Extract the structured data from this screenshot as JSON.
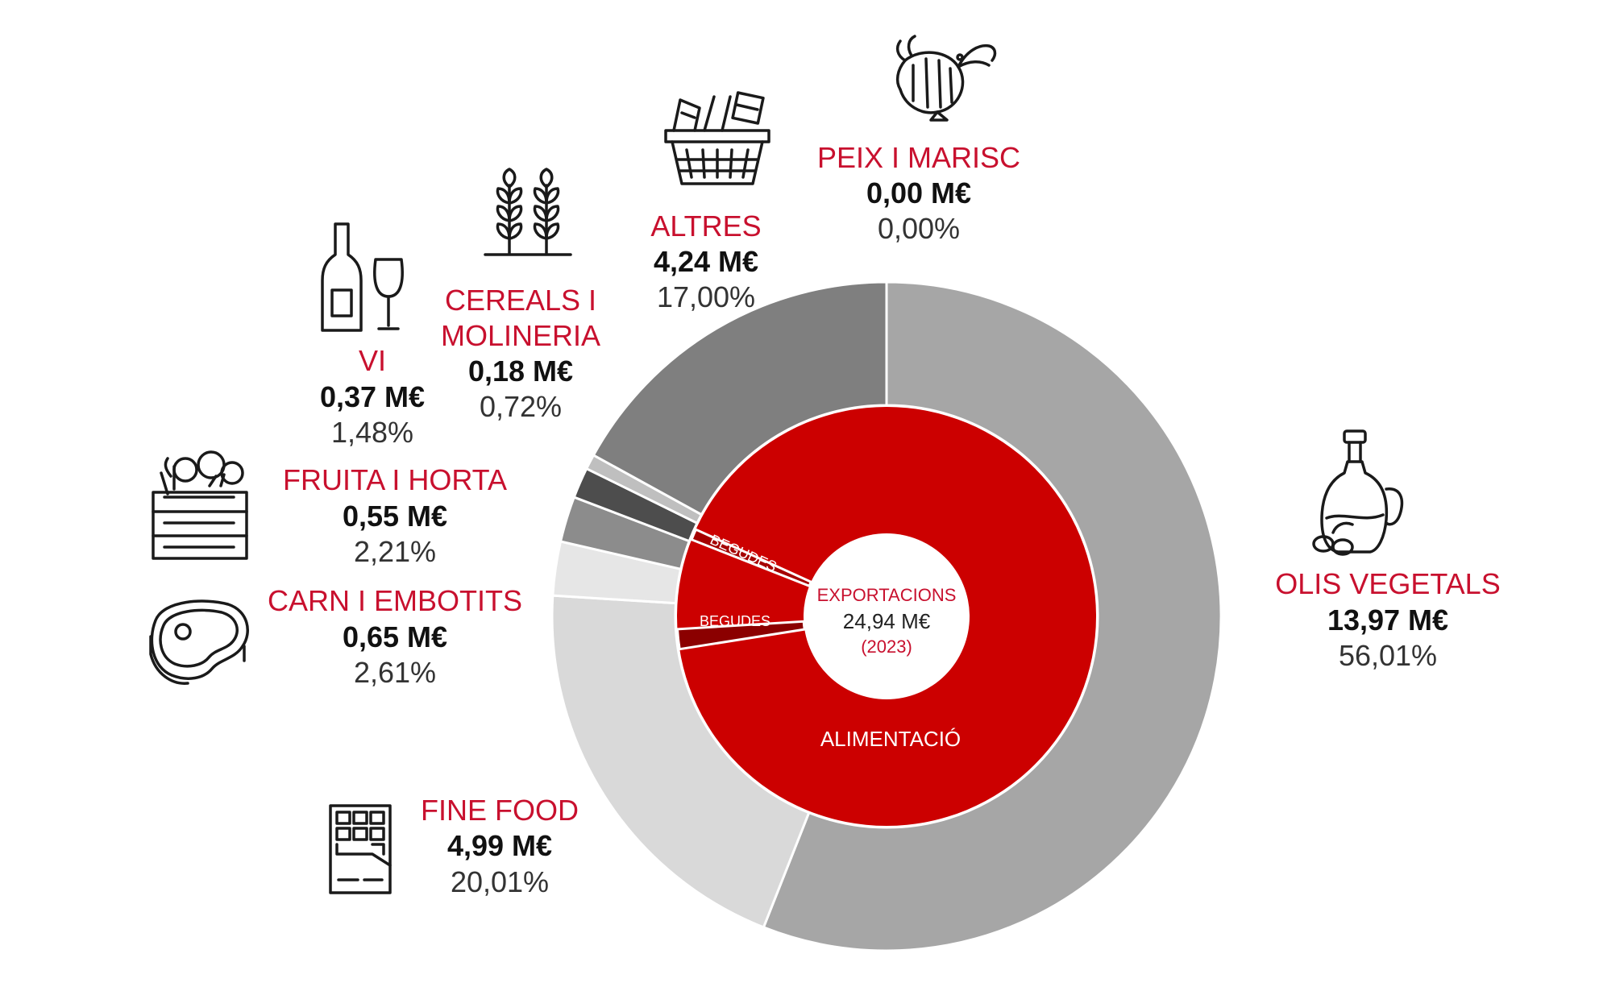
{
  "chart_data": {
    "type": "pie",
    "variant": "sunburst",
    "center": {
      "title": "EXPORTACIONS",
      "total": "24,94 M€",
      "year": "(2023)"
    },
    "inner_ring": [
      {
        "label": "ALIMENTACIÓ",
        "value_pct": 95.71,
        "color": "#cc0000"
      },
      {
        "label": "BEGUDES",
        "value_pct": 0.0,
        "color": "#a50000"
      },
      {
        "label": "BEGUDES",
        "value_pct": 1.48,
        "color": "#8b0000"
      }
    ],
    "outer_ring": [
      {
        "name": "OLIS VEGETALS",
        "value": "13,97 M€",
        "percent": "56,01%",
        "value_num": 13.97,
        "pct_num": 56.01,
        "color": "#a6a6a6",
        "icon": "olive-oil-icon"
      },
      {
        "name": "FINE FOOD",
        "value": "4,99 M€",
        "percent": "20,01%",
        "value_num": 4.99,
        "pct_num": 20.01,
        "color": "#d9d9d9",
        "icon": "chocolate-bar-icon"
      },
      {
        "name": "CARN I EMBOTITS",
        "value": "0,65 M€",
        "percent": "2,61%",
        "value_num": 0.65,
        "pct_num": 2.61,
        "color": "#e6e6e6",
        "icon": "steak-icon"
      },
      {
        "name": "FRUITA I HORTA",
        "value": "0,55 M€",
        "percent": "2,21%",
        "value_num": 0.55,
        "pct_num": 2.21,
        "color": "#8c8c8c",
        "icon": "vegetable-crate-icon"
      },
      {
        "name": "VI",
        "value": "0,37 M€",
        "percent": "1,48%",
        "value_num": 0.37,
        "pct_num": 1.48,
        "color": "#4d4d4d",
        "icon": "wine-icon"
      },
      {
        "name": "CEREALS I MOLINERIA",
        "value": "0,18 M€",
        "percent": "0,72%",
        "value_num": 0.18,
        "pct_num": 0.72,
        "color": "#bfbfbf",
        "icon": "wheat-icon"
      },
      {
        "name": "ALTRES",
        "value": "4,24 M€",
        "percent": "17,00%",
        "value_num": 4.24,
        "pct_num": 17.0,
        "color": "#7f7f7f",
        "icon": "basket-icon"
      },
      {
        "name": "PEIX I MARISC",
        "value": "0,00 M€",
        "percent": "0,00%",
        "value_num": 0.0,
        "pct_num": 0.0,
        "color": "#666666",
        "icon": "shrimp-icon"
      }
    ],
    "name_lines": {
      "CEREALS I MOLINERIA": [
        "CEREALS I",
        "MOLINERIA"
      ]
    },
    "accent_color": "#c8102e"
  }
}
